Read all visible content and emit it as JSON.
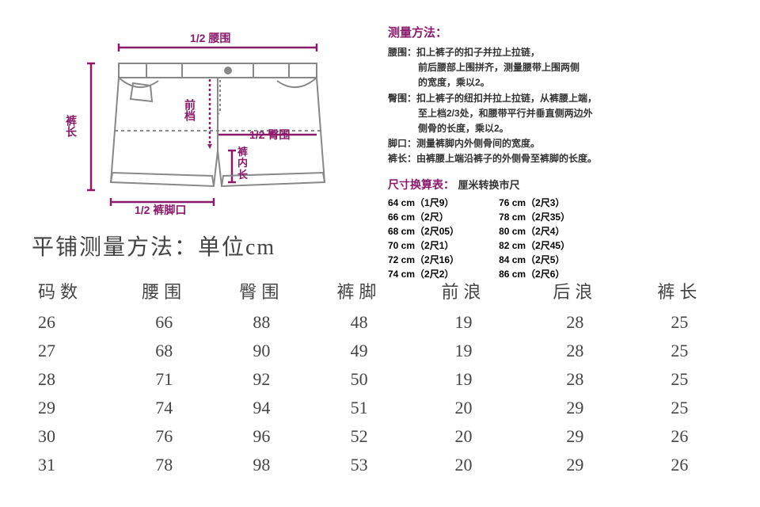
{
  "diagram": {
    "labels": {
      "half_waist": "1/2 腰围",
      "half_hip": "1/2 臀围",
      "front_rise": "前档",
      "inseam": "裤内长",
      "length": "裤长",
      "half_leg": "1/2 裤脚口"
    },
    "line_color": "#8b1a6b",
    "garment_stroke": "#888888"
  },
  "measurement_method": {
    "title": "测量方法：",
    "items": [
      {
        "label": "腰围：",
        "text": "扣上裤子的扣子并拉上拉链，\n前后腰部上围拼齐，测量腰带上围两侧\n的宽度，乘以2。"
      },
      {
        "label": "臀围：",
        "text": "扣上裤子的纽扣并拉上拉链，从裤腰上端，\n至上档2/3处，和腰带平行并垂直侧两边外\n侧骨的长度，乘以2。"
      },
      {
        "label": "脚口：",
        "text": "测量裤脚内外侧骨间的宽度。"
      },
      {
        "label": "裤长：",
        "text": "由裤腰上端沿裤子的外侧骨至裤脚的长度。"
      }
    ]
  },
  "conversion": {
    "title": "尺寸换算表：",
    "subtitle": "厘米转换市尺",
    "left_col": [
      "64 cm（1尺9）",
      "66 cm（2尺）",
      "68 cm（2尺05）",
      "70 cm（2尺1）",
      "72 cm（2尺16）",
      "74 cm（2尺2）"
    ],
    "right_col": [
      "76 cm（2尺3）",
      "78 cm（2尺35）",
      "80 cm（2尺4）",
      "82 cm（2尺45）",
      "84 cm（2尺5）",
      "86 cm（2尺6）"
    ]
  },
  "size_table": {
    "title": "平铺测量方法：单位cm",
    "columns": [
      "码数",
      "腰围",
      "臀围",
      "裤脚",
      "前浪",
      "后浪",
      "裤长"
    ],
    "rows": [
      [
        "26",
        "66",
        "88",
        "48",
        "19",
        "28",
        "25"
      ],
      [
        "27",
        "68",
        "90",
        "49",
        "19",
        "28",
        "25"
      ],
      [
        "28",
        "71",
        "92",
        "50",
        "19",
        "28",
        "25"
      ],
      [
        "29",
        "74",
        "94",
        "51",
        "20",
        "29",
        "25"
      ],
      [
        "30",
        "76",
        "96",
        "52",
        "20",
        "29",
        "26"
      ],
      [
        "31",
        "78",
        "98",
        "53",
        "20",
        "29",
        "26"
      ]
    ]
  }
}
